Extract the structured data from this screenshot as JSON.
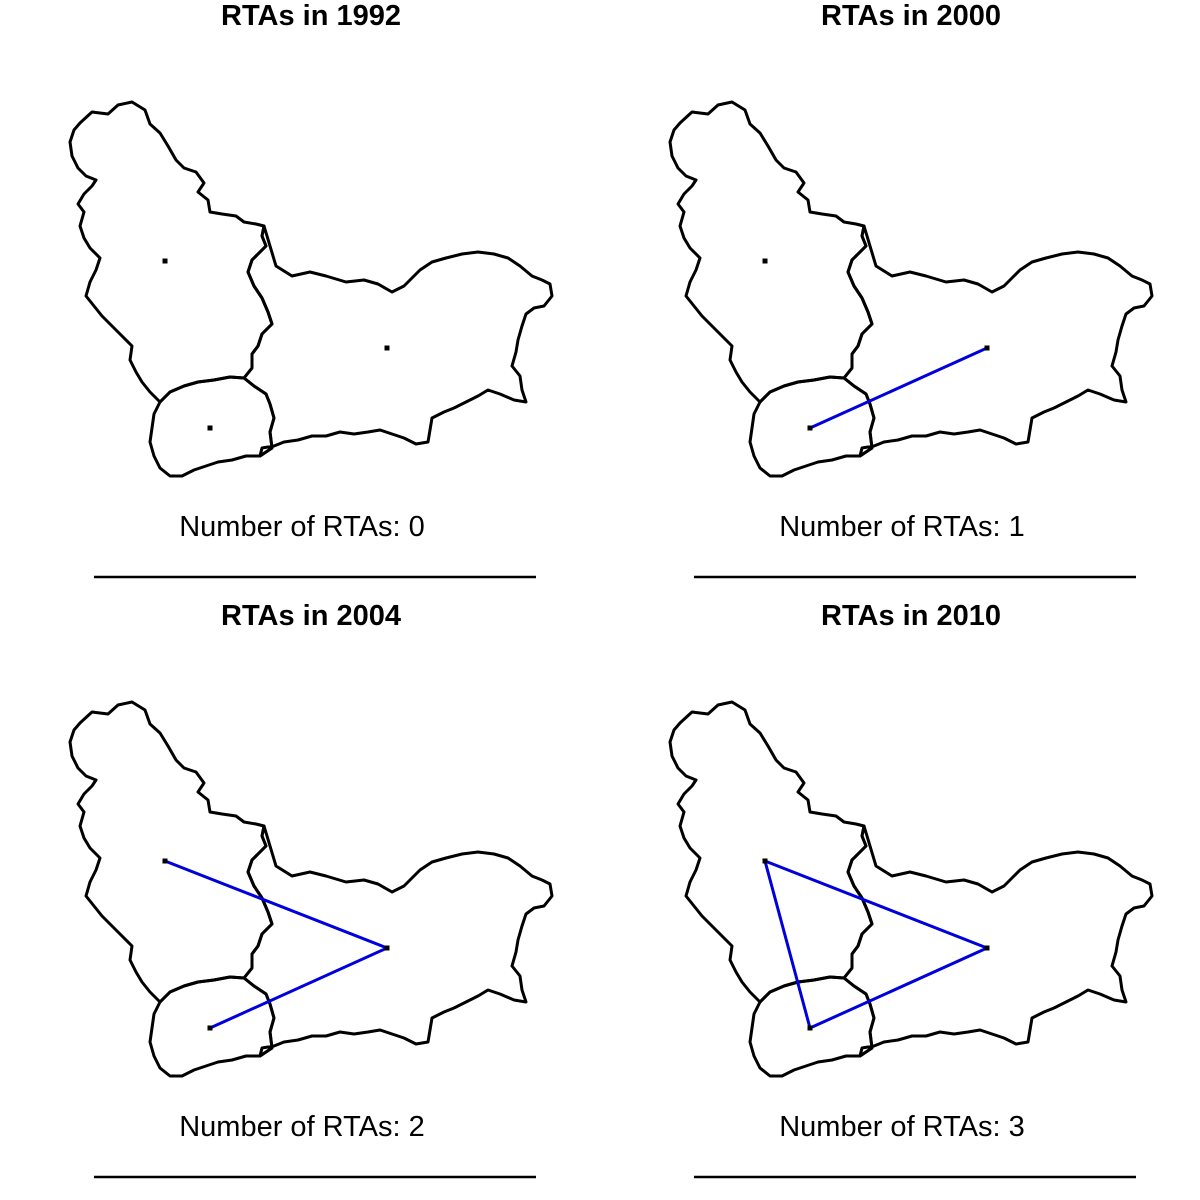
{
  "colors": {
    "border": "#000000",
    "rta_line": "#0000dd",
    "capital": "#000000"
  },
  "countries": [
    "west",
    "east",
    "south"
  ],
  "panels": [
    {
      "title": "RTAs in  1992",
      "caption": "Number of RTAs: 0",
      "links": []
    },
    {
      "title": "RTAs in  2000",
      "caption": "Number of RTAs: 1",
      "links": [
        [
          "south",
          "east"
        ]
      ]
    },
    {
      "title": "RTAs in  2004",
      "caption": "Number of RTAs: 2",
      "links": [
        [
          "south",
          "east"
        ],
        [
          "west",
          "east"
        ]
      ]
    },
    {
      "title": "RTAs in  2010",
      "caption": "Number of RTAs: 3",
      "links": [
        [
          "south",
          "east"
        ],
        [
          "west",
          "east"
        ],
        [
          "west",
          "south"
        ]
      ]
    }
  ]
}
